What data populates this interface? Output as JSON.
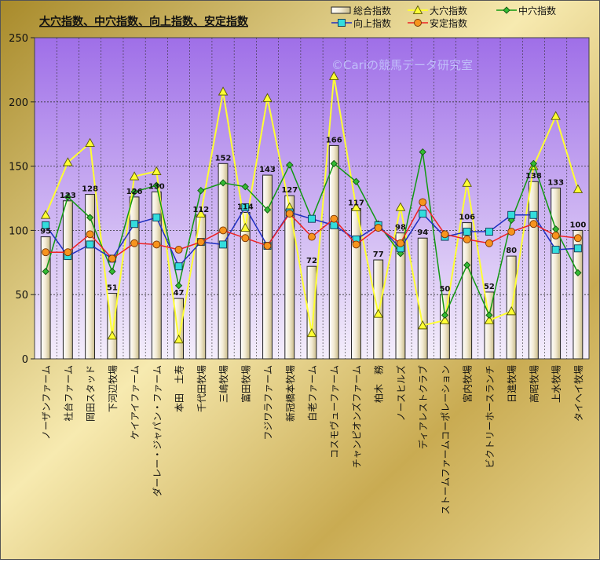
{
  "chart_data": {
    "type": "bar",
    "title": "大穴指数、中穴指数、向上指数、安定指数",
    "watermark": "©Cariの競馬データ研究室",
    "categories": [
      "ノーザンファーム",
      "社台ファーム",
      "岡田スタッド",
      "下河辺牧場",
      "ケイアイファーム",
      "ダーレー・ジャパン・ファーム",
      "本田　土寿",
      "千代田牧場",
      "三嶋牧場",
      "富田牧場",
      "フジワラファーム",
      "新冠橋本牧場",
      "白老ファーム",
      "コスモヴューファーム",
      "チャンピオンズファーム",
      "柏木　務",
      "ノースヒルズ",
      "ディアレストクラブ",
      "ストームファームコーポレーション",
      "宮内牧場",
      "ビクトリーホースランチ",
      "日進牧場",
      "高昭牧場",
      "上水牧場",
      "タイヘイ牧場"
    ],
    "ylim": [
      0,
      250
    ],
    "yticks": [
      0,
      50,
      100,
      150,
      200,
      250
    ],
    "grid": true,
    "legend_position": "top-right",
    "colors": {
      "plot_top": "#9f6fe8",
      "plot_bottom": "#f4eefb",
      "bar_fill": "#f2ead2",
      "bar_edge": "#222222",
      "daiana": "#ffff33",
      "chuana": "#119911",
      "chuana_marker": "#33bb33",
      "koujou": "#1f2fc0",
      "koujou_marker": "#33dddd",
      "antei": "#ee2222",
      "antei_marker": "#f7941d"
    },
    "bar_series": {
      "name": "総合指数",
      "values": [
        95,
        123,
        128,
        51,
        126,
        130,
        47,
        112,
        152,
        114,
        143,
        127,
        72,
        166,
        117,
        77,
        98,
        94,
        50,
        106,
        52,
        80,
        138,
        133,
        100
      ]
    },
    "series": [
      {
        "name": "大穴指数",
        "marker": "triangle",
        "values": [
          112,
          153,
          168,
          18,
          142,
          146,
          15,
          113,
          208,
          102,
          203,
          118,
          20,
          220,
          118,
          35,
          118,
          26,
          30,
          137,
          30,
          37,
          150,
          189,
          132
        ]
      },
      {
        "name": "中穴指数",
        "marker": "diamond",
        "values": [
          68,
          126,
          110,
          68,
          130,
          135,
          57,
          131,
          137,
          134,
          116,
          151,
          109,
          152,
          138,
          105,
          82,
          161,
          34,
          73,
          34,
          108,
          152,
          101,
          67
        ]
      },
      {
        "name": "向上指数",
        "marker": "square",
        "values": [
          104,
          80,
          89,
          78,
          105,
          110,
          72,
          91,
          89,
          118,
          88,
          114,
          109,
          104,
          93,
          104,
          86,
          113,
          95,
          99,
          99,
          112,
          112,
          85,
          86
        ]
      },
      {
        "name": "安定指数",
        "marker": "circle",
        "values": [
          83,
          83,
          97,
          78,
          90,
          89,
          85,
          91,
          100,
          94,
          88,
          113,
          95,
          109,
          89,
          102,
          90,
          122,
          97,
          93,
          90,
          99,
          105,
          96,
          94
        ]
      }
    ]
  }
}
